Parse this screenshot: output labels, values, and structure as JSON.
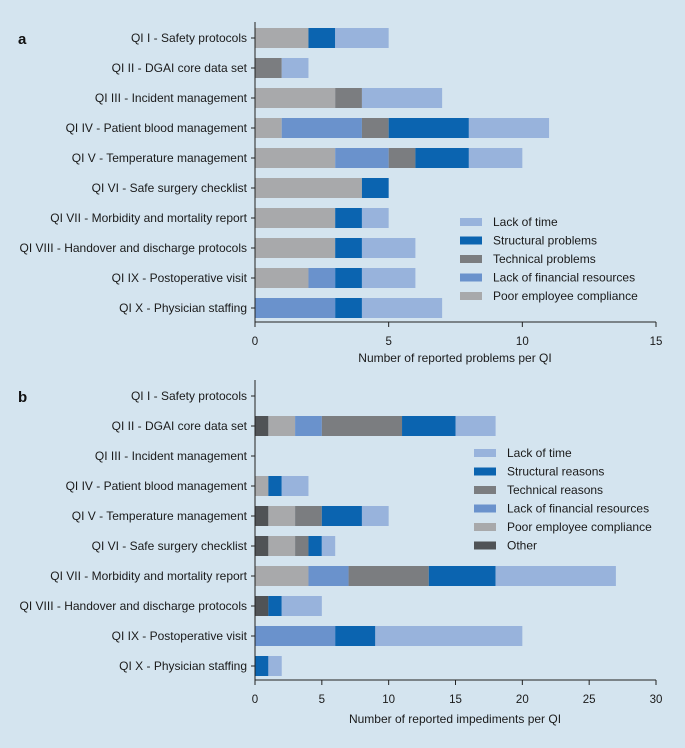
{
  "colors": {
    "Lack of time": "#98b3dc",
    "Structural": "#0b64b0",
    "Technical": "#7b7d80",
    "Lack of financial resources": "#6a92cc",
    "Poor employee compliance": "#a8a9ab",
    "Other": "#505356"
  },
  "chart_data": [
    {
      "type": "bar",
      "orientation": "horizontal",
      "stacked": true,
      "panel": "a",
      "xlabel": "Number of reported problems per QI",
      "xlim": [
        0,
        15
      ],
      "xticks": [
        0,
        5,
        10,
        15
      ],
      "categories": [
        "QI I - Safety protocols",
        "QI II - DGAI core data set",
        "QI III - Incident management",
        "QI IV - Patient blood management",
        "QI V - Temperature management",
        "QI VI - Safe surgery checklist",
        "QI VII - Morbidity and mortality report",
        "QI VIII - Handover and discharge protocols",
        "QI IX - Postoperative visit",
        "QI X - Physician staffing"
      ],
      "series": [
        {
          "name": "Poor employee compliance",
          "color_key": "Poor employee compliance",
          "values": [
            2,
            0,
            3,
            1,
            3,
            4,
            3,
            3,
            2,
            0
          ]
        },
        {
          "name": "Lack of financial resources",
          "color_key": "Lack of financial resources",
          "values": [
            0,
            0,
            0,
            3,
            2,
            0,
            0,
            0,
            1,
            3
          ]
        },
        {
          "name": "Technical problems",
          "color_key": "Technical",
          "values": [
            0,
            1,
            1,
            1,
            1,
            0,
            0,
            0,
            0,
            0
          ]
        },
        {
          "name": "Structural problems",
          "color_key": "Structural",
          "values": [
            1,
            0,
            0,
            3,
            2,
            1,
            1,
            1,
            1,
            1
          ]
        },
        {
          "name": "Lack of time",
          "color_key": "Lack of time",
          "values": [
            2,
            1,
            3,
            3,
            2,
            0,
            1,
            2,
            2,
            3
          ]
        }
      ],
      "legend": [
        "Lack of time",
        "Structural problems",
        "Technical problems",
        "Lack of financial resources",
        "Poor employee compliance"
      ],
      "legend_position": "bottom-right"
    },
    {
      "type": "bar",
      "orientation": "horizontal",
      "stacked": true,
      "panel": "b",
      "xlabel": "Number of reported impediments per QI",
      "xlim": [
        0,
        30
      ],
      "xticks": [
        0,
        5,
        10,
        15,
        20,
        25,
        30
      ],
      "categories": [
        "QI I - Safety protocols",
        "QI II - DGAI core data set",
        "QI III - Incident management",
        "QI IV - Patient blood management",
        "QI V  - Temperature management",
        "QI VI - Safe surgery checklist",
        "QI VII - Morbidity and mortality report",
        "QI VIII - Handover and discharge protocols",
        "QI IX - Postoperative visit",
        "QI X - Physician staffing"
      ],
      "series": [
        {
          "name": "Other",
          "color_key": "Other",
          "values": [
            0,
            1,
            0,
            0,
            1,
            1,
            0,
            1,
            0,
            0
          ]
        },
        {
          "name": "Poor employee compliance",
          "color_key": "Poor employee compliance",
          "values": [
            0,
            2,
            0,
            1,
            2,
            2,
            4,
            0,
            0,
            0
          ]
        },
        {
          "name": "Lack of financial resources",
          "color_key": "Lack of financial resources",
          "values": [
            0,
            2,
            0,
            0,
            0,
            0,
            3,
            0,
            6,
            0
          ]
        },
        {
          "name": "Technical reasons",
          "color_key": "Technical",
          "values": [
            0,
            6,
            0,
            0,
            2,
            1,
            6,
            0,
            0,
            0
          ]
        },
        {
          "name": "Structural reasons",
          "color_key": "Structural",
          "values": [
            0,
            4,
            0,
            1,
            3,
            1,
            5,
            1,
            3,
            1
          ]
        },
        {
          "name": "Lack of time",
          "color_key": "Lack of time",
          "values": [
            0,
            3,
            0,
            2,
            2,
            1,
            9,
            3,
            11,
            1
          ]
        }
      ],
      "legend": [
        "Lack of time",
        "Structural reasons",
        "Technical reasons",
        "Lack of financial resources",
        "Poor employee compliance",
        "Other"
      ],
      "legend_position": "right"
    }
  ]
}
